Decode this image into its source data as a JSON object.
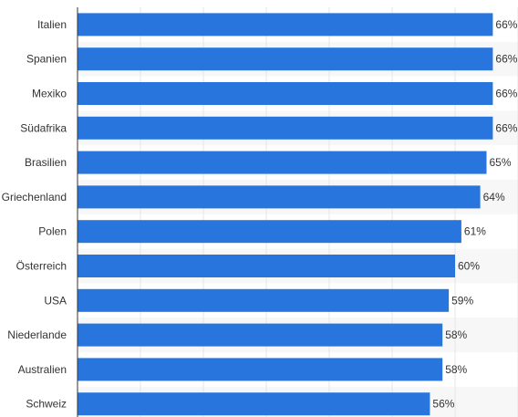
{
  "chart_data": {
    "type": "bar",
    "orientation": "horizontal",
    "categories": [
      "Italien",
      "Spanien",
      "Mexiko",
      "Südafrika",
      "Brasilien",
      "Griechenland",
      "Polen",
      "Österreich",
      "USA",
      "Niederlande",
      "Australien",
      "Schweiz"
    ],
    "values": [
      66,
      66,
      66,
      66,
      65,
      64,
      61,
      60,
      59,
      58,
      58,
      56
    ],
    "value_labels": [
      "66%",
      "66%",
      "66%",
      "66%",
      "65%",
      "64%",
      "61%",
      "60%",
      "59%",
      "58%",
      "58%",
      "56%"
    ],
    "unit": "%",
    "xlim": [
      0,
      70
    ],
    "grid": true,
    "colors": {
      "bar": "#2876dd",
      "grid": "#e6e6e6",
      "alt_band": "#f7f7f7",
      "axis": "#333333"
    }
  }
}
